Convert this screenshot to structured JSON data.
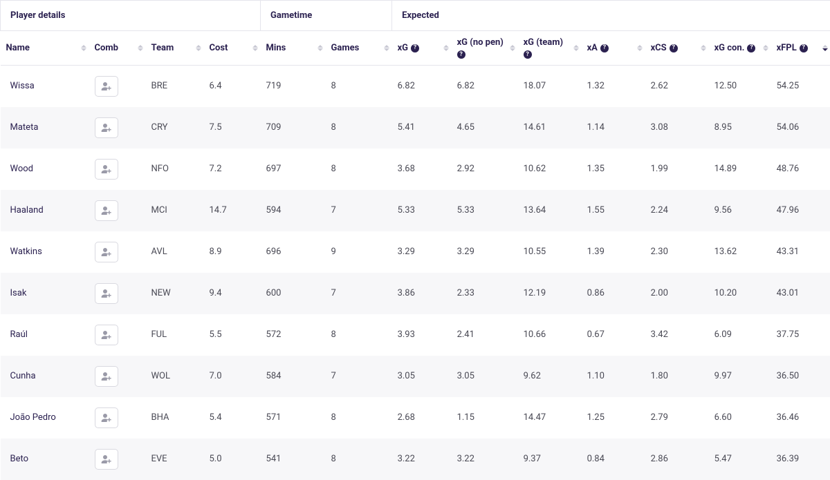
{
  "groups": {
    "player_details": "Player details",
    "gametime": "Gametime",
    "expected": "Expected"
  },
  "columns": {
    "name": {
      "label": "Name",
      "help": false,
      "sortable": true
    },
    "comb": {
      "label": "Comb",
      "help": false,
      "sortable": true
    },
    "team": {
      "label": "Team",
      "help": false,
      "sortable": true
    },
    "cost": {
      "label": "Cost",
      "help": false,
      "sortable": true
    },
    "mins": {
      "label": "Mins",
      "help": false,
      "sortable": true
    },
    "games": {
      "label": "Games",
      "help": false,
      "sortable": true
    },
    "xg": {
      "label": "xG",
      "help": true,
      "sortable": true
    },
    "xgnp": {
      "label": "xG (no pen)",
      "help": true,
      "sortable": true
    },
    "xgtm": {
      "label": "xG (team)",
      "help": true,
      "sortable": true
    },
    "xa": {
      "label": "xA",
      "help": true,
      "sortable": true
    },
    "xcs": {
      "label": "xCS",
      "help": true,
      "sortable": true
    },
    "xgcon": {
      "label": "xG con.",
      "help": true,
      "sortable": true
    },
    "xfpl": {
      "label": "xFPL",
      "help": true,
      "sortable": true,
      "sorted": "desc"
    }
  },
  "rows": [
    {
      "name": "Wissa",
      "team": "BRE",
      "cost": "6.4",
      "mins": "719",
      "games": "8",
      "xg": "6.82",
      "xgnp": "6.82",
      "xgtm": "18.07",
      "xa": "1.32",
      "xcs": "2.62",
      "xgcon": "12.50",
      "xfpl": "54.25"
    },
    {
      "name": "Mateta",
      "team": "CRY",
      "cost": "7.5",
      "mins": "709",
      "games": "8",
      "xg": "5.41",
      "xgnp": "4.65",
      "xgtm": "14.61",
      "xa": "1.14",
      "xcs": "3.08",
      "xgcon": "8.95",
      "xfpl": "54.06"
    },
    {
      "name": "Wood",
      "team": "NFO",
      "cost": "7.2",
      "mins": "697",
      "games": "8",
      "xg": "3.68",
      "xgnp": "2.92",
      "xgtm": "10.62",
      "xa": "1.35",
      "xcs": "1.99",
      "xgcon": "14.89",
      "xfpl": "48.76"
    },
    {
      "name": "Haaland",
      "team": "MCI",
      "cost": "14.7",
      "mins": "594",
      "games": "7",
      "xg": "5.33",
      "xgnp": "5.33",
      "xgtm": "13.64",
      "xa": "1.55",
      "xcs": "2.24",
      "xgcon": "9.56",
      "xfpl": "47.96"
    },
    {
      "name": "Watkins",
      "team": "AVL",
      "cost": "8.9",
      "mins": "696",
      "games": "9",
      "xg": "3.29",
      "xgnp": "3.29",
      "xgtm": "10.55",
      "xa": "1.39",
      "xcs": "2.30",
      "xgcon": "13.62",
      "xfpl": "43.31"
    },
    {
      "name": "Isak",
      "team": "NEW",
      "cost": "9.4",
      "mins": "600",
      "games": "7",
      "xg": "3.86",
      "xgnp": "2.33",
      "xgtm": "12.19",
      "xa": "0.86",
      "xcs": "2.00",
      "xgcon": "10.20",
      "xfpl": "43.01"
    },
    {
      "name": "Raúl",
      "team": "FUL",
      "cost": "5.5",
      "mins": "572",
      "games": "8",
      "xg": "3.93",
      "xgnp": "2.41",
      "xgtm": "10.66",
      "xa": "0.67",
      "xcs": "3.42",
      "xgcon": "6.09",
      "xfpl": "37.75"
    },
    {
      "name": "Cunha",
      "team": "WOL",
      "cost": "7.0",
      "mins": "584",
      "games": "7",
      "xg": "3.05",
      "xgnp": "3.05",
      "xgtm": "9.62",
      "xa": "1.10",
      "xcs": "1.80",
      "xgcon": "9.97",
      "xfpl": "36.50"
    },
    {
      "name": "João Pedro",
      "team": "BHA",
      "cost": "5.4",
      "mins": "571",
      "games": "8",
      "xg": "2.68",
      "xgnp": "1.15",
      "xgtm": "14.47",
      "xa": "1.25",
      "xcs": "2.79",
      "xgcon": "6.60",
      "xfpl": "36.46"
    },
    {
      "name": "Beto",
      "team": "EVE",
      "cost": "5.0",
      "mins": "541",
      "games": "8",
      "xg": "3.22",
      "xgnp": "3.22",
      "xgtm": "9.37",
      "xa": "0.84",
      "xcs": "2.86",
      "xgcon": "5.47",
      "xfpl": "36.39"
    }
  ]
}
